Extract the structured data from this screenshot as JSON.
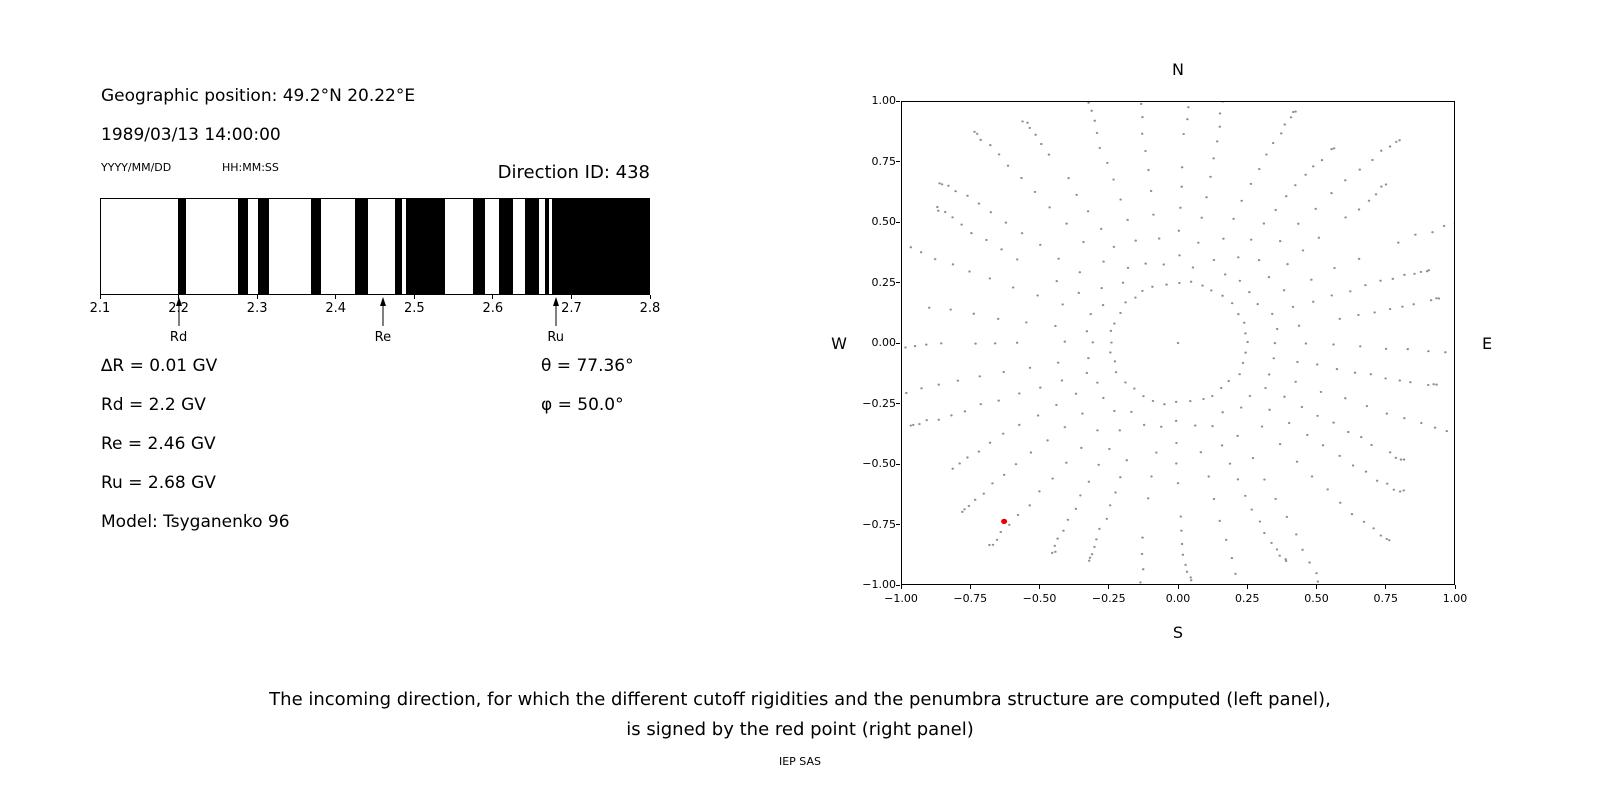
{
  "header": {
    "geo_position": "Geographic position: 49.2°N 20.22°E",
    "datetime": "1989/03/13 14:00:00",
    "date_format": "YYYY/MM/DD",
    "time_format": "HH:MM:SS",
    "direction_id": "Direction ID: 438"
  },
  "left_panel": {
    "params": [
      "∆R = 0.01 GV",
      "Rd = 2.2 GV",
      "Re = 2.46 GV",
      "Ru = 2.68 GV",
      "Model: Tsyganenko 96"
    ],
    "theta": "θ = 77.36°",
    "phi": "φ = 50.0°"
  },
  "caption": {
    "line1": "The incoming direction, for which the different cutoff rigidities and the penumbra structure are computed (left panel),",
    "line2": "is signed by the red point (right panel)",
    "credit": "IEP SAS"
  },
  "chart_data": [
    {
      "type": "bar",
      "name": "penumbra-structure",
      "xlim": [
        2.1,
        2.8
      ],
      "x_unit": "GV",
      "xticks": [
        2.1,
        2.2,
        2.3,
        2.4,
        2.5,
        2.6,
        2.7,
        2.8
      ],
      "xtick_labels": [
        "2.1",
        "2.2",
        "2.3",
        "2.4",
        "2.5",
        "2.6",
        "2.7",
        "2.8"
      ],
      "band_color": "#000000",
      "background_color": "#ffffff",
      "forbidden_bands": [
        [
          2.198,
          2.209
        ],
        [
          2.275,
          2.288
        ],
        [
          2.3,
          2.314
        ],
        [
          2.368,
          2.381
        ],
        [
          2.425,
          2.441
        ],
        [
          2.475,
          2.484
        ],
        [
          2.49,
          2.54
        ],
        [
          2.575,
          2.59
        ],
        [
          2.609,
          2.626
        ],
        [
          2.641,
          2.659
        ],
        [
          2.667,
          2.672
        ],
        [
          2.676,
          2.8
        ]
      ],
      "markers": [
        {
          "label": "Rd",
          "value": 2.2
        },
        {
          "label": "Re",
          "value": 2.46
        },
        {
          "label": "Ru",
          "value": 2.68
        }
      ]
    },
    {
      "type": "scatter",
      "name": "incoming-directions-map",
      "xlim": [
        -1,
        1
      ],
      "ylim": [
        -1,
        1
      ],
      "xticks": [
        -1,
        -0.75,
        -0.5,
        -0.25,
        0,
        0.25,
        0.5,
        0.75,
        1
      ],
      "xtick_labels": [
        "−1.00",
        "−0.75",
        "−0.50",
        "−0.25",
        "0.00",
        "0.25",
        "0.50",
        "0.75",
        "1.00"
      ],
      "yticks": [
        -1,
        -0.75,
        -0.5,
        -0.25,
        0,
        0.25,
        0.5,
        0.75,
        1
      ],
      "ytick_labels": [
        "−1.00",
        "−0.75",
        "−0.50",
        "−0.25",
        "0.00",
        "0.25",
        "0.50",
        "0.75",
        "1.00"
      ],
      "compass": {
        "top": "N",
        "right": "E",
        "bottom": "S",
        "left": "W"
      },
      "dot_color": "#8f8f8f",
      "red_point": {
        "x": -0.63,
        "y": -0.74,
        "color": "#e60000"
      },
      "pattern": {
        "n_spokes": 36,
        "points_per_spoke": 13,
        "r_start": 0.34,
        "r_end_min": 0.95,
        "r_end_max": 1.18,
        "inner_ring_radius": 0.25,
        "inner_ring_points": 36,
        "center_point": true,
        "dot_radius": 0.0045,
        "red_radius": 0.011,
        "seed": 438
      }
    }
  ]
}
